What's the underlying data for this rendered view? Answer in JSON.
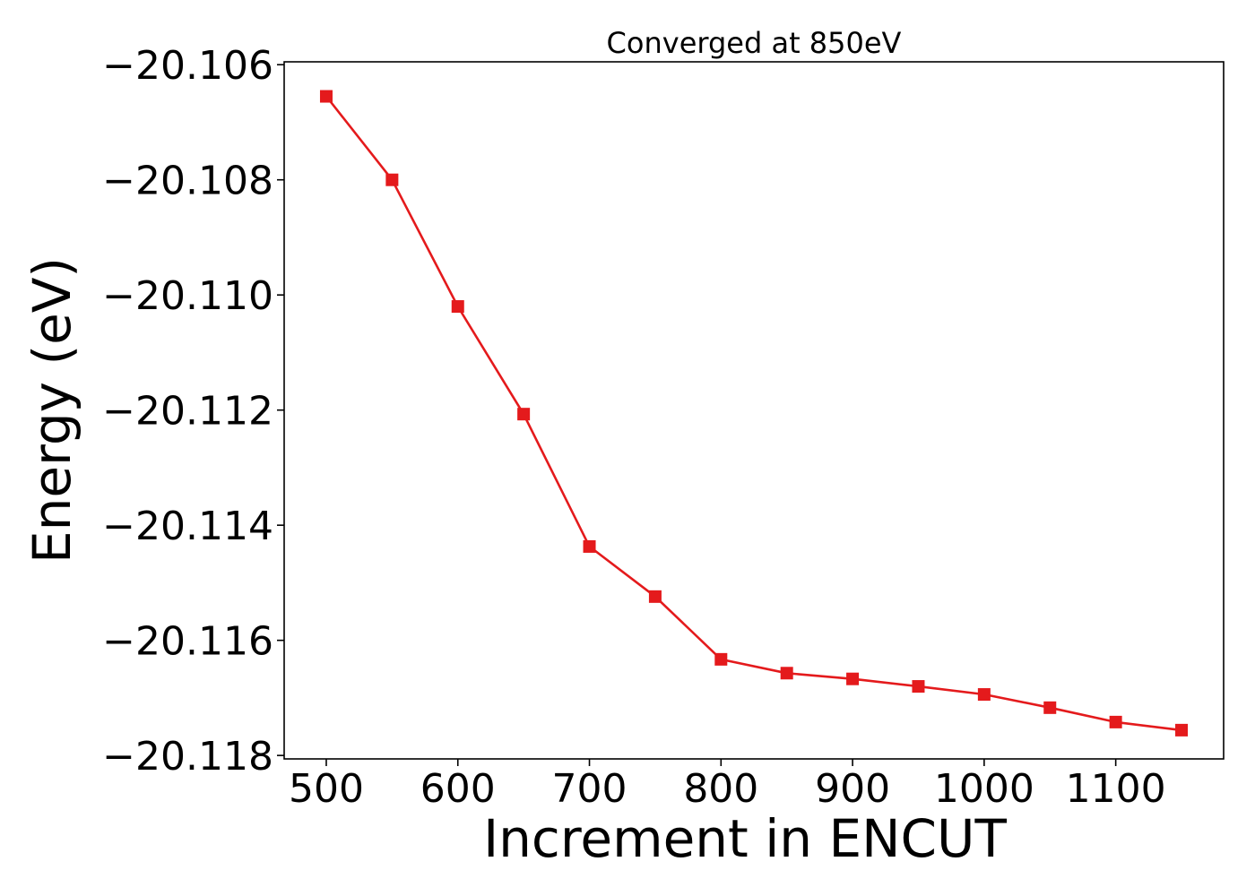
{
  "chart_data": {
    "type": "line",
    "title": "Converged at 850eV",
    "xlabel": "Increment in ENCUT",
    "ylabel": "Energy (eV)",
    "x": [
      500,
      550,
      600,
      650,
      700,
      750,
      800,
      850,
      900,
      950,
      1000,
      1050,
      1100,
      1150
    ],
    "series": [
      {
        "values": [
          -20.10655,
          -20.108,
          -20.1102,
          -20.11207,
          -20.11437,
          -20.11524,
          -20.11633,
          -20.11657,
          -20.11667,
          -20.1168,
          -20.11694,
          -20.11717,
          -20.11742,
          -20.11756
        ],
        "color": "#e41a1c",
        "marker": "square"
      }
    ],
    "xlim": [
      468,
      1182
    ],
    "ylim": [
      -20.11806,
      -20.10595
    ],
    "xticks": [
      500,
      600,
      700,
      800,
      900,
      1000,
      1100
    ],
    "xtick_labels": [
      "500",
      "600",
      "700",
      "800",
      "900",
      "1000",
      "1100"
    ],
    "yticks": [
      -20.106,
      -20.108,
      -20.11,
      -20.112,
      -20.114,
      -20.116,
      -20.118
    ],
    "ytick_labels": [
      "−20.106",
      "−20.108",
      "−20.110",
      "−20.112",
      "−20.114",
      "−20.116",
      "−20.118"
    ],
    "grid": false,
    "legend": "none"
  }
}
